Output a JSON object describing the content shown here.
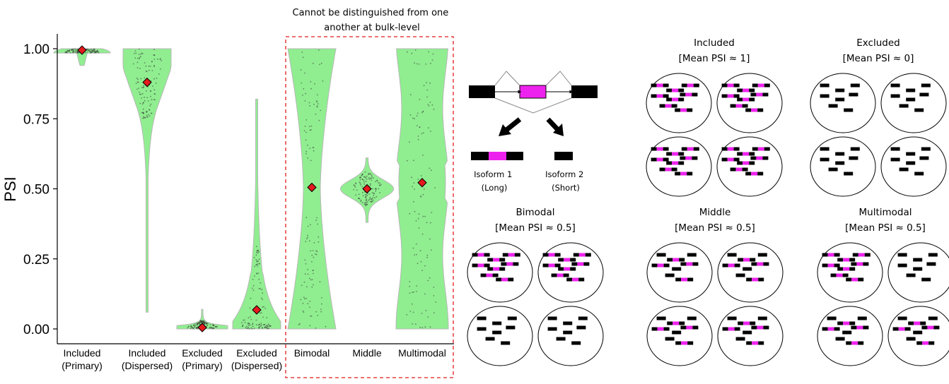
{
  "chart_data": {
    "type": "violin",
    "ylabel": "PSI",
    "ylim": [
      0,
      1
    ],
    "yticks": [
      "0.00",
      "0.25",
      "0.50",
      "0.75",
      "1.00"
    ],
    "categories": [
      {
        "label": [
          "Included",
          "(Primary)"
        ],
        "mean": 0.995
      },
      {
        "label": [
          "Included",
          "(Dispersed)"
        ],
        "mean": 0.88
      },
      {
        "label": [
          "Excluded",
          "(Primary)"
        ],
        "mean": 0.005
      },
      {
        "label": [
          "Excluded",
          "(Dispersed)"
        ],
        "mean": 0.068
      },
      {
        "label": [
          "Bimodal"
        ],
        "mean": 0.505
      },
      {
        "label": [
          "Middle"
        ],
        "mean": 0.5
      },
      {
        "label": [
          "Multimodal"
        ],
        "mean": 0.522
      }
    ],
    "annotation": [
      "Cannot be distinguished from one",
      "another at bulk-level"
    ],
    "colors": {
      "violin_fill": "#90ee90",
      "violin_stroke": "#b8b8b8",
      "mean_marker": "#e41a1c",
      "annotation_box": "#e41a1c"
    }
  },
  "diagram": {
    "isoforms": [
      {
        "name": "Isoform 1",
        "detail": "(Long)"
      },
      {
        "name": "Isoform 2",
        "detail": "(Short)"
      }
    ],
    "exon_color": "#000000",
    "cassette_color": "#ee22ee",
    "panels": [
      {
        "title": "Included",
        "subtitle": "[Mean PSI ≈ 1]"
      },
      {
        "title": "Excluded",
        "subtitle": "[Mean PSI ≈ 0]"
      },
      {
        "title": "Bimodal",
        "subtitle": "[Mean PSI ≈ 0.5]"
      },
      {
        "title": "Middle",
        "subtitle": "[Mean PSI ≈ 0.5]"
      },
      {
        "title": "Multimodal",
        "subtitle": "[Mean PSI ≈ 0.5]"
      }
    ]
  }
}
